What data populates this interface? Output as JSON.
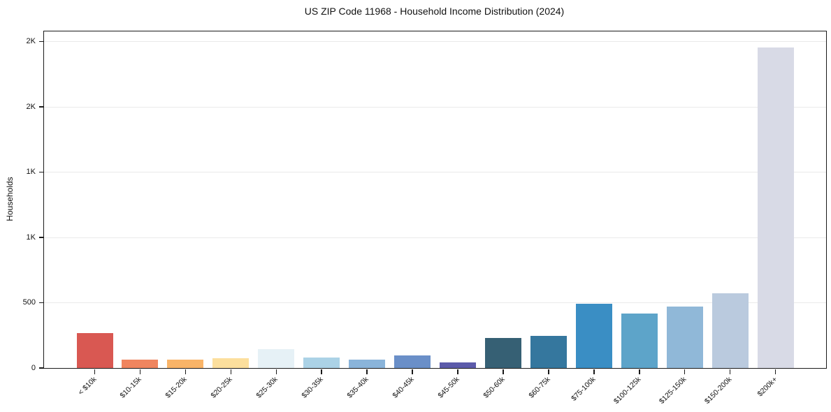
{
  "chart_data": {
    "type": "bar",
    "title": "US ZIP Code 11968 - Household Income Distribution (2024)",
    "xlabel": "",
    "ylabel": "Households",
    "categories": [
      "< $10k",
      "$10-15k",
      "$15-20k",
      "$20-25k",
      "$25-30k",
      "$30-35k",
      "$35-40k",
      "$40-45k",
      "$45-50k",
      "$50-60k",
      "$60-75k",
      "$75-100k",
      "$100-125k",
      "$125-150k",
      "$150-200k",
      "$200k+"
    ],
    "values": [
      267,
      64,
      64,
      73,
      143,
      80,
      63,
      95,
      41,
      230,
      246,
      494,
      415,
      469,
      570,
      2453
    ],
    "bar_colors": [
      "#d95852",
      "#f0855f",
      "#f9b468",
      "#fcdf9d",
      "#e6f1f6",
      "#abd2e6",
      "#8ab4da",
      "#6a8fc8",
      "#5c5baa",
      "#366074",
      "#35779e",
      "#3a8ec4",
      "#5da4c9",
      "#90b8d8",
      "#bacade",
      "#d8dae6"
    ],
    "ylim": [
      0,
      2576
    ],
    "yticks": [
      {
        "value": 0,
        "label": "0"
      },
      {
        "value": 500,
        "label": "500"
      },
      {
        "value": 1000,
        "label": "1K"
      },
      {
        "value": 1500,
        "label": "1K"
      },
      {
        "value": 2000,
        "label": "2K"
      },
      {
        "value": 2500,
        "label": "2K"
      }
    ],
    "grid": "horizontal",
    "legend": "none",
    "colors": {
      "gridline": "#eaeaea",
      "spine": "#1a1a1a",
      "background": "#ffffff",
      "text": "#111111"
    }
  }
}
